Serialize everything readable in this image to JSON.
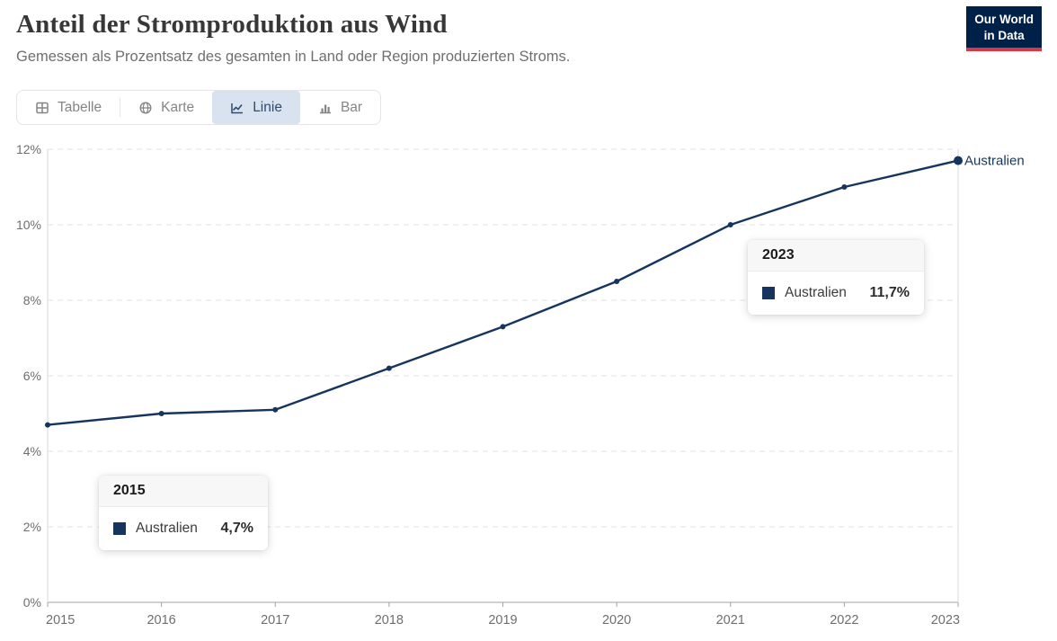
{
  "header": {
    "title": "Anteil der Stromproduktion aus Wind",
    "subtitle": "Gemessen als Prozentsatz des gesamten in Land oder Region produzierten Stroms.",
    "logo": {
      "line1": "Our World",
      "line2": "in Data"
    }
  },
  "tabs": [
    {
      "label": "Tabelle",
      "icon": "table-icon",
      "active": false
    },
    {
      "label": "Karte",
      "icon": "globe-icon",
      "active": false
    },
    {
      "label": "Linie",
      "icon": "line-chart-icon",
      "active": true
    },
    {
      "label": "Bar",
      "icon": "bar-chart-icon",
      "active": false
    }
  ],
  "chart_data": {
    "type": "line",
    "title": "Anteil der Stromproduktion aus Wind",
    "x": [
      2015,
      2016,
      2017,
      2018,
      2019,
      2020,
      2021,
      2022,
      2023
    ],
    "series": [
      {
        "name": "Australien",
        "color": "#16355e",
        "values": [
          4.7,
          5.0,
          5.1,
          6.2,
          7.3,
          8.5,
          10.0,
          11.0,
          11.7
        ]
      }
    ],
    "ylim": [
      0,
      12
    ],
    "yticks": [
      0,
      2,
      4,
      6,
      8,
      10,
      12
    ],
    "ytick_suffix": "%",
    "grid": "horizontal-dashed",
    "legend_position": "line-end-label",
    "end_label": "Australien",
    "marked_x": [
      2015,
      2023
    ]
  },
  "tooltips": [
    {
      "year": "2015",
      "entity": "Australien",
      "value": "4,7%"
    },
    {
      "year": "2023",
      "entity": "Australien",
      "value": "11,7%"
    }
  ],
  "colors": {
    "line": "#16355e",
    "logo_bg": "#002147",
    "logo_underline": "#d73848",
    "active_tab_bg": "#d8e3ef",
    "active_tab_text": "#2d4b73",
    "grid": "#e2e2e2",
    "axis": "#a3a3a3",
    "tick_label": "#6e6e6e",
    "marker_line": "#d9d9d9"
  }
}
